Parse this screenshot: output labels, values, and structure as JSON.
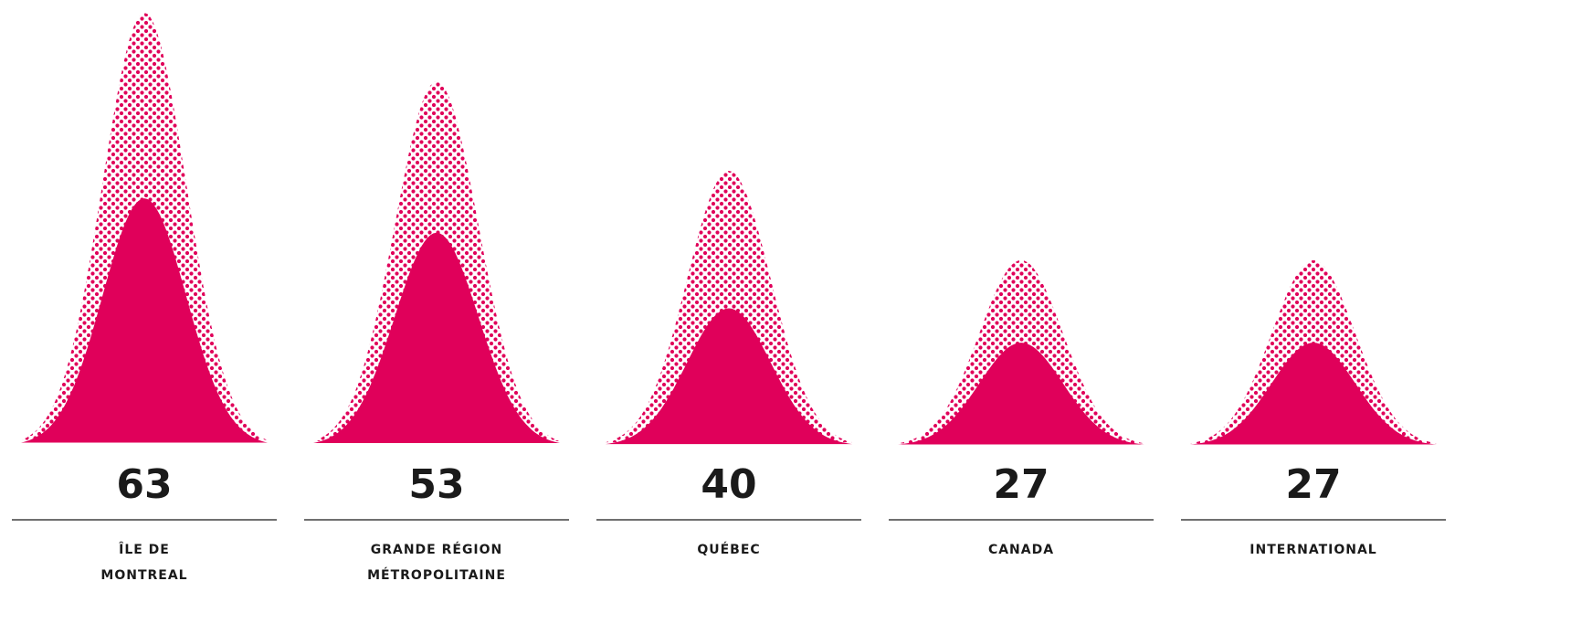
{
  "chart_data": {
    "type": "area",
    "colors": {
      "accent": "#e0005a",
      "text": "#1a1a1a",
      "divider": "#1a1a1a"
    },
    "categories": [
      [
        "ÎLE DE",
        "MONTREAL"
      ],
      [
        "GRANDE RÉGION",
        "MÉTROPOLITAINE"
      ],
      [
        "QUÉBEC"
      ],
      [
        "CANADA"
      ],
      [
        "INTERNATIONAL"
      ]
    ],
    "values": [
      63,
      53,
      40,
      27,
      27
    ],
    "value_labels": [
      "63",
      "53",
      "40",
      "27",
      "27"
    ],
    "inner_values": [
      36,
      31,
      20,
      15,
      15
    ],
    "ylim": [
      0,
      63
    ],
    "grid": false,
    "legend": "none"
  }
}
